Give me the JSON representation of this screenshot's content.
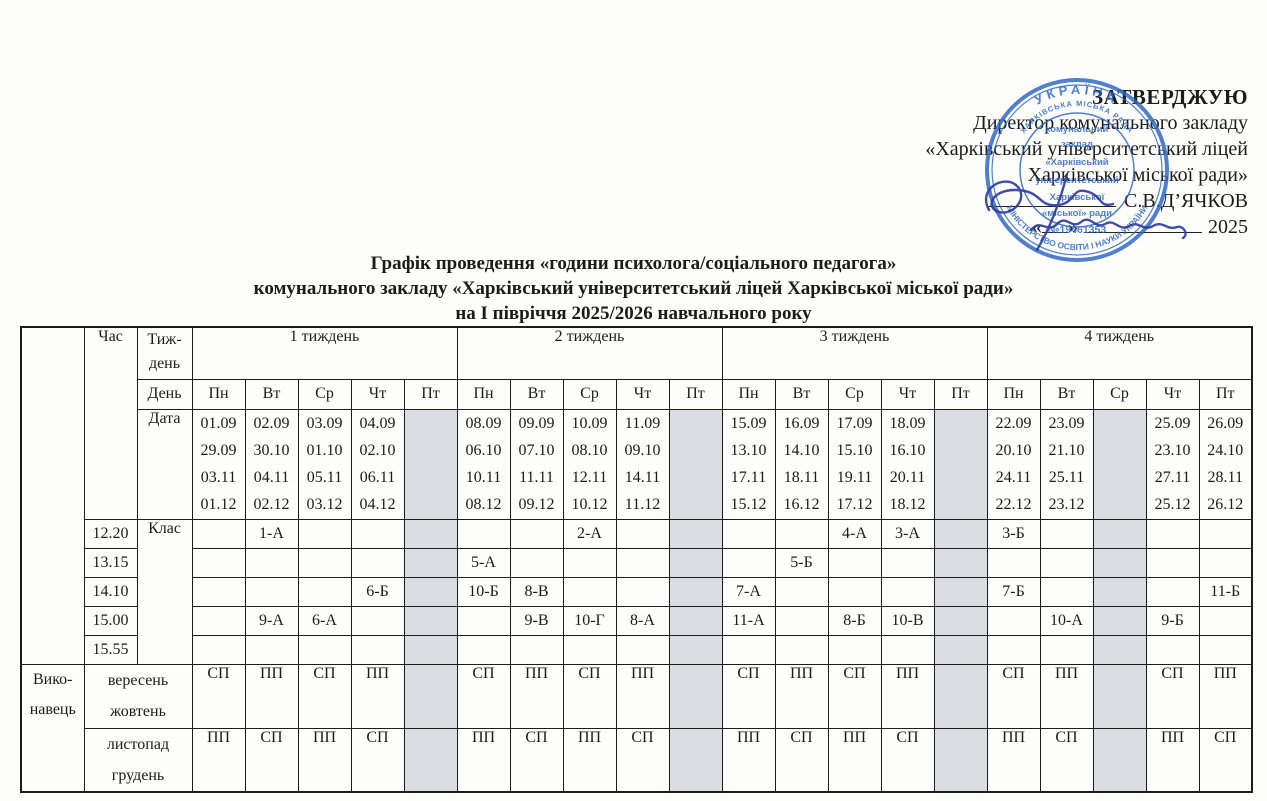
{
  "approval": {
    "stamp_word": "ЗАТВЕРДЖУЮ",
    "line2": "Директор комунального закладу",
    "line3": "«Харківський університетський ліцей",
    "line4": "Харківської міської ради»",
    "director_name": "С.В.Д’ЯЧКОВ",
    "quote_open": "«",
    "quote_close": "»",
    "year": "2025"
  },
  "seal": {
    "top_text": "УКРАЇНА",
    "outer_text": "МІНІСТЕРСТВО ОСВІТИ І НАУКИ УКРАЇНИ",
    "inner_arc_text": "ХАРКІВСЬКА МІСЬКА РАДА",
    "center_lines": [
      "комунальний",
      "заклад",
      "«Харківський",
      "університетський",
      "Харківської",
      "«міської» ради"
    ],
    "number": "№19461353",
    "color": "#2a64c3"
  },
  "title": {
    "line1": "Графік проведення «години психолога/соціального педагога»",
    "line2": "комунального закладу «Харківський університетський ліцей Харківської міської ради»",
    "line3": "на І півріччя 2025/2026 навчального року"
  },
  "table": {
    "labels": {
      "time": "Час",
      "week_row_a": "Тиж-",
      "week_row_b": "день",
      "day": "День",
      "date": "Дата",
      "klas": "Клас",
      "exec_a": "Вико-",
      "exec_b": "навець"
    },
    "times": [
      "12.20",
      "13.15",
      "14.10",
      "15.00",
      "15.55"
    ],
    "months_row1": [
      "вересень",
      "жовтень"
    ],
    "months_row2": [
      "листопад",
      "грудень"
    ],
    "weeks": [
      {
        "label": "1 тиждень",
        "days": [
          "Пн",
          "Вт",
          "Ср",
          "Чт",
          "Пт"
        ],
        "shaded_day": 4,
        "dates": [
          [
            "01.09",
            "29.09",
            "03.11",
            "01.12"
          ],
          [
            "02.09",
            "30.10",
            "04.11",
            "02.12"
          ],
          [
            "03.09",
            "01.10",
            "05.11",
            "03.12"
          ],
          [
            "04.09",
            "02.10",
            "06.11",
            "04.12"
          ],
          []
        ],
        "classes": [
          [
            "",
            "1-А",
            "",
            "",
            ""
          ],
          [
            "",
            "",
            "",
            "",
            ""
          ],
          [
            "",
            "",
            "",
            "6-Б",
            ""
          ],
          [
            "",
            "9-А",
            "6-А",
            "",
            ""
          ],
          [
            "",
            "",
            "",
            "",
            ""
          ]
        ],
        "exec1": [
          "СП",
          "ПП",
          "СП",
          "ПП",
          ""
        ],
        "exec2": [
          "ПП",
          "СП",
          "ПП",
          "СП",
          ""
        ]
      },
      {
        "label": "2 тиждень",
        "days": [
          "Пн",
          "Вт",
          "Ср",
          "Чт",
          "Пт"
        ],
        "shaded_day": 4,
        "dates": [
          [
            "08.09",
            "06.10",
            "10.11",
            "08.12"
          ],
          [
            "09.09",
            "07.10",
            "11.11",
            "09.12"
          ],
          [
            "10.09",
            "08.10",
            "12.11",
            "10.12"
          ],
          [
            "11.09",
            "09.10",
            "14.11",
            "11.12"
          ],
          []
        ],
        "classes": [
          [
            "",
            "",
            "2-А",
            "",
            ""
          ],
          [
            "5-А",
            "",
            "",
            "",
            ""
          ],
          [
            "10-Б",
            "8-В",
            "",
            "",
            ""
          ],
          [
            "",
            "9-В",
            "10-Г",
            "8-А",
            ""
          ],
          [
            "",
            "",
            "",
            "",
            ""
          ]
        ],
        "exec1": [
          "СП",
          "ПП",
          "СП",
          "ПП",
          ""
        ],
        "exec2": [
          "ПП",
          "СП",
          "ПП",
          "СП",
          ""
        ]
      },
      {
        "label": "3 тиждень",
        "days": [
          "Пн",
          "Вт",
          "Ср",
          "Чт",
          "Пт"
        ],
        "shaded_day": 4,
        "dates": [
          [
            "15.09",
            "13.10",
            "17.11",
            "15.12"
          ],
          [
            "16.09",
            "14.10",
            "18.11",
            "16.12"
          ],
          [
            "17.09",
            "15.10",
            "19.11",
            "17.12"
          ],
          [
            "18.09",
            "16.10",
            "20.11",
            "18.12"
          ],
          []
        ],
        "classes": [
          [
            "",
            "",
            "4-А",
            "3-А",
            ""
          ],
          [
            "",
            "5-Б",
            "",
            "",
            ""
          ],
          [
            "7-А",
            "",
            "",
            "",
            ""
          ],
          [
            "11-А",
            "",
            "8-Б",
            "10-В",
            ""
          ],
          [
            "",
            "",
            "",
            "",
            ""
          ]
        ],
        "exec1": [
          "СП",
          "ПП",
          "СП",
          "ПП",
          ""
        ],
        "exec2": [
          "ПП",
          "СП",
          "ПП",
          "СП",
          ""
        ]
      },
      {
        "label": "4 тиждень",
        "days": [
          "Пн",
          "Вт",
          "Ср",
          "Чт",
          "Пт"
        ],
        "shaded_day": 2,
        "dates": [
          [
            "22.09",
            "20.10",
            "24.11",
            "22.12"
          ],
          [
            "23.09",
            "21.10",
            "25.11",
            "23.12"
          ],
          [],
          [
            "25.09",
            "23.10",
            "27.11",
            "25.12"
          ],
          [
            "26.09",
            "24.10",
            "28.11",
            "26.12"
          ]
        ],
        "classes": [
          [
            "3-Б",
            "",
            "",
            "",
            ""
          ],
          [
            "",
            "",
            "",
            "",
            ""
          ],
          [
            "7-Б",
            "",
            "",
            "",
            "11-Б"
          ],
          [
            "",
            "10-А",
            "",
            "9-Б",
            ""
          ],
          [
            "",
            "",
            "",
            "",
            ""
          ]
        ],
        "exec1": [
          "СП",
          "ПП",
          "",
          "СП",
          "ПП"
        ],
        "exec2": [
          "ПП",
          "СП",
          "",
          "ПП",
          "СП"
        ]
      }
    ]
  }
}
